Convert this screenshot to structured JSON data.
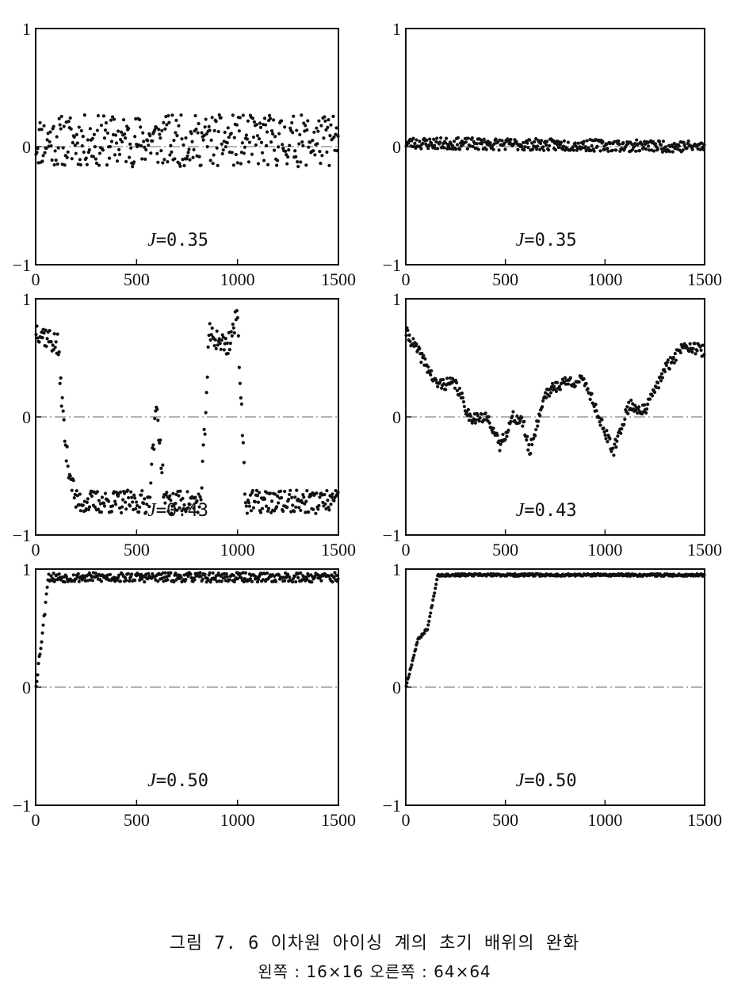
{
  "caption": "그림 7. 6  이차원 아이싱 계의 초기 배위의 완화",
  "subcaption": "왼쪽 : 16×16   오른쪽 : 64×64",
  "chart_data": [
    {
      "type": "scatter",
      "label": "J=0.35",
      "J": "J",
      "Jvalue": "=0.35",
      "xlim": [
        0,
        1500
      ],
      "ylim": [
        -1,
        1
      ],
      "xticks": [
        "0",
        "500",
        "1000",
        "1500"
      ],
      "yticks": [
        "−1",
        "0",
        "1"
      ],
      "trend": [
        [
          0,
          0.05
        ],
        [
          1500,
          0.05
        ]
      ],
      "spread": 0.22,
      "seed": 11
    },
    {
      "type": "scatter",
      "label": "J=0.35",
      "J": "J",
      "Jvalue": "=0.35",
      "xlim": [
        0,
        1500
      ],
      "ylim": [
        -1,
        1
      ],
      "xticks": [
        "0",
        "500",
        "1000",
        "1500"
      ],
      "yticks": [
        "−1",
        "0",
        "1"
      ],
      "trend": [
        [
          0,
          0.03
        ],
        [
          1500,
          0.0
        ]
      ],
      "spread": 0.05,
      "seed": 23
    },
    {
      "type": "scatter",
      "label": "J=0.43",
      "J": "J",
      "Jvalue": "=0.43",
      "xlim": [
        0,
        1500
      ],
      "ylim": [
        -1,
        1
      ],
      "xticks": [
        "0",
        "500",
        "1000",
        "1500"
      ],
      "yticks": [
        "−1",
        "0",
        "1"
      ],
      "trend": [
        [
          0,
          0.75
        ],
        [
          110,
          0.6
        ],
        [
          150,
          -0.3
        ],
        [
          200,
          -0.72
        ],
        [
          560,
          -0.72
        ],
        [
          600,
          0.1
        ],
        [
          640,
          -0.72
        ],
        [
          820,
          -0.72
        ],
        [
          860,
          0.7
        ],
        [
          950,
          0.6
        ],
        [
          1000,
          0.85
        ],
        [
          1040,
          -0.72
        ],
        [
          1500,
          -0.72
        ]
      ],
      "spread": 0.1,
      "seed": 37
    },
    {
      "type": "scatter",
      "label": "J=0.43",
      "J": "J",
      "Jvalue": "=0.43",
      "xlim": [
        0,
        1500
      ],
      "ylim": [
        -1,
        1
      ],
      "xticks": [
        "0",
        "500",
        "1000",
        "1500"
      ],
      "yticks": [
        "−1",
        "0",
        "1"
      ],
      "trend": [
        [
          0,
          0.72
        ],
        [
          100,
          0.45
        ],
        [
          150,
          0.28
        ],
        [
          250,
          0.28
        ],
        [
          320,
          0.0
        ],
        [
          420,
          -0.02
        ],
        [
          470,
          -0.25
        ],
        [
          540,
          0.0
        ],
        [
          590,
          -0.05
        ],
        [
          620,
          -0.3
        ],
        [
          700,
          0.2
        ],
        [
          800,
          0.3
        ],
        [
          900,
          0.3
        ],
        [
          1040,
          -0.3
        ],
        [
          1120,
          0.1
        ],
        [
          1200,
          0.05
        ],
        [
          1300,
          0.4
        ],
        [
          1400,
          0.62
        ],
        [
          1500,
          0.55
        ]
      ],
      "spread": 0.05,
      "seed": 41
    },
    {
      "type": "scatter",
      "label": "J=0.50",
      "J": "J",
      "Jvalue": "=0.50",
      "xlim": [
        0,
        1500
      ],
      "ylim": [
        -1,
        1
      ],
      "xticks": [
        "0",
        "500",
        "1000",
        "1500"
      ],
      "yticks": [
        "−1",
        "0",
        "1"
      ],
      "trend": [
        [
          0,
          0.0
        ],
        [
          40,
          0.55
        ],
        [
          60,
          0.93
        ],
        [
          1500,
          0.93
        ]
      ],
      "spread": 0.04,
      "seed": 53
    },
    {
      "type": "scatter",
      "label": "J=0.50",
      "J": "J",
      "Jvalue": "=0.50",
      "xlim": [
        0,
        1500
      ],
      "ylim": [
        -1,
        1
      ],
      "xticks": [
        "0",
        "500",
        "1000",
        "1500"
      ],
      "yticks": [
        "−1",
        "0",
        "1"
      ],
      "trend": [
        [
          0,
          0.0
        ],
        [
          60,
          0.4
        ],
        [
          110,
          0.5
        ],
        [
          160,
          0.95
        ],
        [
          1500,
          0.95
        ]
      ],
      "spread": 0.01,
      "seed": 67
    }
  ]
}
